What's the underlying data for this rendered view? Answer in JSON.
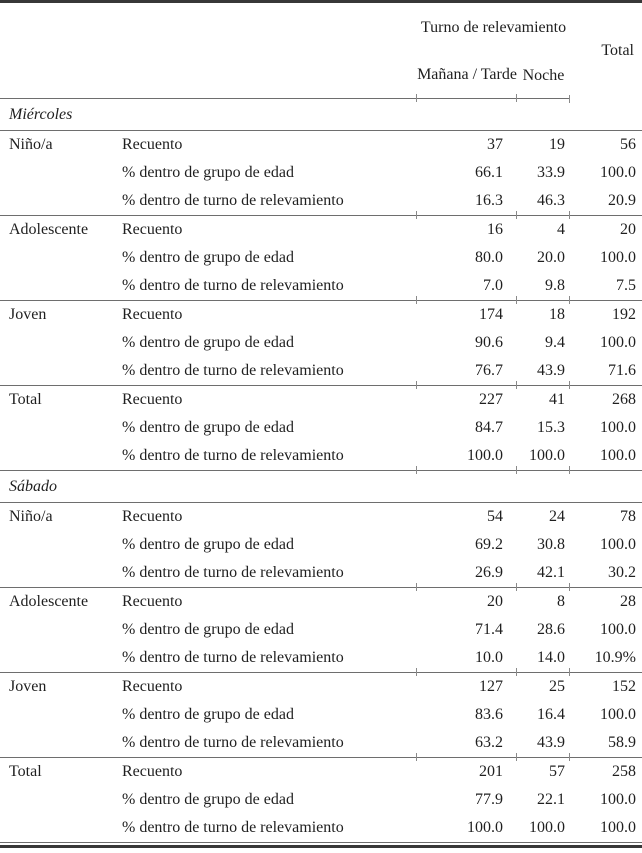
{
  "table": {
    "header": {
      "turno_label": "Turno de relevamiento",
      "col_manana_tarde": "Mañana / Tarde",
      "col_noche": "Noche",
      "col_total": "Total"
    },
    "row_labels": {
      "recuento": "Recuento",
      "pct_grupo": "% dentro de grupo de edad",
      "pct_turno": "% dentro de turno de relevamiento"
    },
    "sections": [
      {
        "label": "Miércoles",
        "groups": [
          {
            "label": "Niño/a",
            "recuento": [
              "37",
              "19",
              "56"
            ],
            "pct_grupo": [
              "66.1",
              "33.9",
              "100.0"
            ],
            "pct_turno": [
              "16.3",
              "46.3",
              "20.9"
            ]
          },
          {
            "label": "Adolescente",
            "recuento": [
              "16",
              "4",
              "20"
            ],
            "pct_grupo": [
              "80.0",
              "20.0",
              "100.0"
            ],
            "pct_turno": [
              "7.0",
              "9.8",
              "7.5"
            ]
          },
          {
            "label": "Joven",
            "recuento": [
              "174",
              "18",
              "192"
            ],
            "pct_grupo": [
              "90.6",
              "9.4",
              "100.0"
            ],
            "pct_turno": [
              "76.7",
              "43.9",
              "71.6"
            ]
          },
          {
            "label": "Total",
            "recuento": [
              "227",
              "41",
              "268"
            ],
            "pct_grupo": [
              "84.7",
              "15.3",
              "100.0"
            ],
            "pct_turno": [
              "100.0",
              "100.0",
              "100.0"
            ]
          }
        ]
      },
      {
        "label": "Sábado",
        "groups": [
          {
            "label": "Niño/a",
            "recuento": [
              "54",
              "24",
              "78"
            ],
            "pct_grupo": [
              "69.2",
              "30.8",
              "100.0"
            ],
            "pct_turno": [
              "26.9",
              "42.1",
              "30.2"
            ]
          },
          {
            "label": "Adolescente",
            "recuento": [
              "20",
              "8",
              "28"
            ],
            "pct_grupo": [
              "71.4",
              "28.6",
              "100.0"
            ],
            "pct_turno": [
              "10.0",
              "14.0",
              "10.9%"
            ]
          },
          {
            "label": "Joven",
            "recuento": [
              "127",
              "25",
              "152"
            ],
            "pct_grupo": [
              "83.6",
              "16.4",
              "100.0"
            ],
            "pct_turno": [
              "63.2",
              "43.9",
              "58.9"
            ]
          },
          {
            "label": "Total",
            "recuento": [
              "201",
              "57",
              "258"
            ],
            "pct_grupo": [
              "77.9",
              "22.1",
              "100.0"
            ],
            "pct_turno": [
              "100.0",
              "100.0",
              "100.0"
            ]
          }
        ]
      }
    ],
    "colors": {
      "text": "#1f1f1f",
      "rule_light": "#6e6e6e",
      "rule_heavy": "#383838"
    }
  }
}
